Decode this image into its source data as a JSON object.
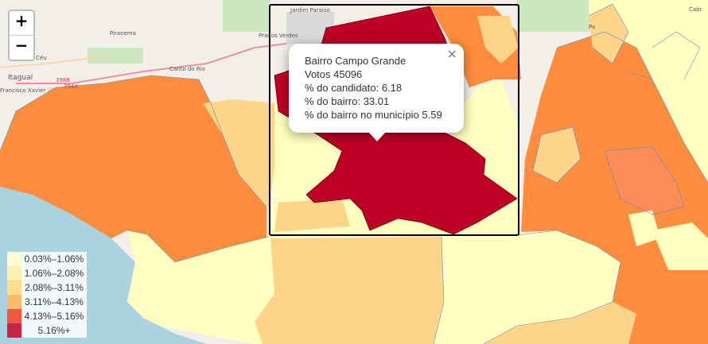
{
  "map": {
    "zoom_in": "+",
    "zoom_out": "−",
    "place_labels": [
      "Jardim Paraíso",
      "Prados Verdes",
      "Piranema",
      "Itaguaí",
      "Céu",
      "Francisco Xavier",
      "Canto do Rio",
      "Cabr",
      "Pa"
    ],
    "road_labels": [
      "3988",
      "3944"
    ]
  },
  "popup": {
    "close": "×",
    "title": "Bairro Campo Grande",
    "votes": "Votos 45096",
    "pct_candidate": "% do candidato: 6.18",
    "pct_bairro": "% do bairro: 33.01",
    "pct_municipio": "% do bairro no município 5.59"
  },
  "legend": [
    {
      "label": "0.03%–1.06%",
      "color": "#ffffcc"
    },
    {
      "label": "1.06%–2.08%",
      "color": "#ffeda0"
    },
    {
      "label": "2.08%–3.11%",
      "color": "#fed976"
    },
    {
      "label": "3.11%–4.13%",
      "color": "#feb24c"
    },
    {
      "label": "4.13%–5.16%",
      "color": "#f03b20"
    },
    {
      "label": "5.16%+",
      "color": "#bd0026"
    }
  ],
  "colors": {
    "level1": "#ffffbf",
    "level2": "#fed38a",
    "level3": "#fd8d3c",
    "level4": "#fc8d59",
    "highlight": "#bd0026",
    "water": "#aad3df",
    "land": "#f2efe9"
  }
}
